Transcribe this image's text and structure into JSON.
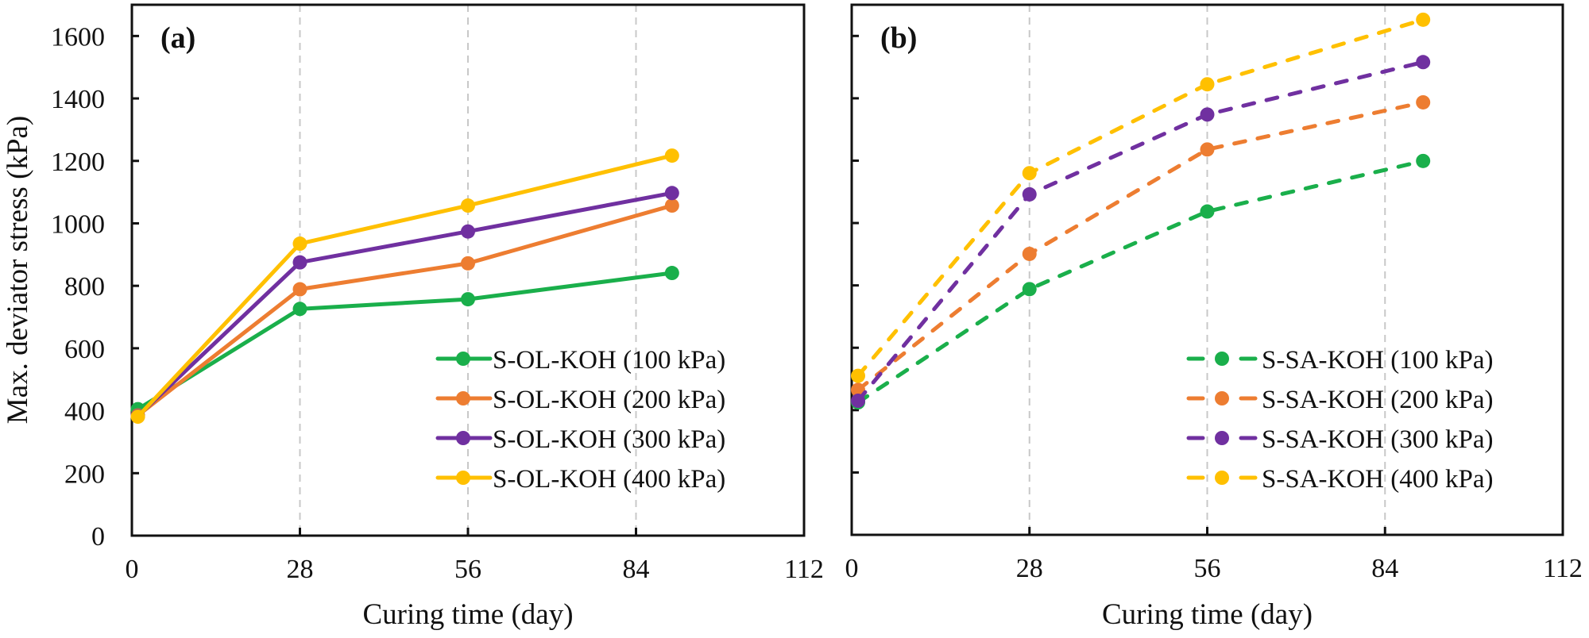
{
  "chart_data": [
    {
      "type": "line",
      "panel_label": "(a)",
      "title": "",
      "xlabel": "Curing time (day)",
      "ylabel": "Max. deviator stress (kPa)",
      "xlim": [
        0,
        112
      ],
      "ylim": [
        0,
        1700
      ],
      "xticks": [
        0,
        28,
        56,
        84,
        112
      ],
      "yticks": [
        0,
        200,
        400,
        600,
        800,
        1000,
        1200,
        1400,
        1600
      ],
      "grid": "vertical dashed at x ticks",
      "line_style": "solid",
      "legend_position": "bottom-right",
      "x": [
        1,
        28,
        56,
        90
      ],
      "series": [
        {
          "name": "S-OL-KOH (100 kPa)",
          "color": "#1aaf4b",
          "values": [
            405,
            726,
            757,
            841
          ]
        },
        {
          "name": "S-OL-KOH (200 kPa)",
          "color": "#ed7d31",
          "values": [
            385,
            789,
            872,
            1057
          ]
        },
        {
          "name": "S-OL-KOH (300 kPa)",
          "color": "#7030a0",
          "values": [
            383,
            875,
            974,
            1097
          ]
        },
        {
          "name": "S-OL-KOH (400 kPa)",
          "color": "#ffc000",
          "values": [
            381,
            935,
            1057,
            1217
          ]
        }
      ]
    },
    {
      "type": "line",
      "panel_label": "(b)",
      "title": "",
      "xlabel": "Curing time (day)",
      "ylabel": "",
      "xlim": [
        0,
        112
      ],
      "ylim": [
        0,
        1700
      ],
      "xticks": [
        0,
        28,
        56,
        84,
        112
      ],
      "yticks": [
        0,
        200,
        400,
        600,
        800,
        1000,
        1200,
        1400,
        1600
      ],
      "grid": "vertical dashed at x ticks",
      "line_style": "dashed",
      "legend_position": "bottom-right",
      "x": [
        1,
        28,
        56,
        90
      ],
      "series": [
        {
          "name": "S-SA-KOH (100 kPa)",
          "color": "#1aaf4b",
          "values": [
            425,
            788,
            1037,
            1199
          ]
        },
        {
          "name": "S-SA-KOH (200 kPa)",
          "color": "#ed7d31",
          "values": [
            465,
            901,
            1236,
            1387
          ]
        },
        {
          "name": "S-SA-KOH (300 kPa)",
          "color": "#7030a0",
          "values": [
            430,
            1092,
            1348,
            1516
          ]
        },
        {
          "name": "S-SA-KOH (400 kPa)",
          "color": "#ffc000",
          "values": [
            510,
            1160,
            1445,
            1652
          ]
        }
      ]
    }
  ]
}
